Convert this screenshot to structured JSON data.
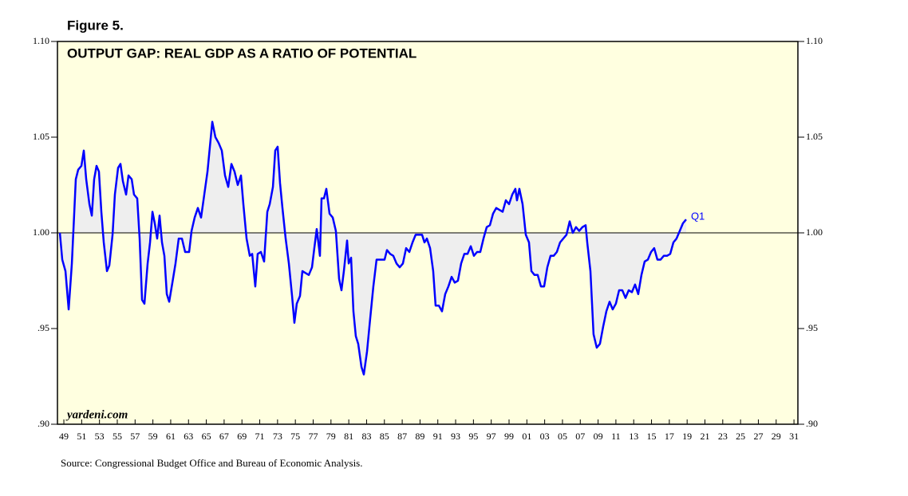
{
  "chart_data": {
    "type": "line",
    "figure_label": "Figure 5.",
    "title": "OUTPUT GAP: REAL GDP AS A RATIO OF POTENTIAL",
    "watermark": "yardeni.com",
    "annotation": "Q1",
    "source": "Source: Congressional Budget Office and Bureau of Economic Analysis.",
    "color": "#0000ff",
    "fill": "#eeeeee",
    "background": "#ffffe0",
    "baseline": 1.0,
    "xlim": [
      1948.28,
      2031.44
    ],
    "ylim": [
      0.9,
      1.1
    ],
    "yticks": [
      {
        "value": 0.9,
        "label": ".90"
      },
      {
        "value": 0.95,
        "label": ".95"
      },
      {
        "value": 1.0,
        "label": "1.00"
      },
      {
        "value": 1.05,
        "label": "1.05"
      },
      {
        "value": 1.1,
        "label": "1.10"
      }
    ],
    "xticks": [
      {
        "value": 1949,
        "label": "49"
      },
      {
        "value": 1951,
        "label": "51"
      },
      {
        "value": 1953,
        "label": "53"
      },
      {
        "value": 1955,
        "label": "55"
      },
      {
        "value": 1957,
        "label": "57"
      },
      {
        "value": 1959,
        "label": "59"
      },
      {
        "value": 1961,
        "label": "61"
      },
      {
        "value": 1963,
        "label": "63"
      },
      {
        "value": 1965,
        "label": "65"
      },
      {
        "value": 1967,
        "label": "67"
      },
      {
        "value": 1969,
        "label": "69"
      },
      {
        "value": 1971,
        "label": "71"
      },
      {
        "value": 1973,
        "label": "73"
      },
      {
        "value": 1975,
        "label": "75"
      },
      {
        "value": 1977,
        "label": "77"
      },
      {
        "value": 1979,
        "label": "79"
      },
      {
        "value": 1981,
        "label": "81"
      },
      {
        "value": 1983,
        "label": "83"
      },
      {
        "value": 1985,
        "label": "85"
      },
      {
        "value": 1987,
        "label": "87"
      },
      {
        "value": 1989,
        "label": "89"
      },
      {
        "value": 1991,
        "label": "91"
      },
      {
        "value": 1993,
        "label": "93"
      },
      {
        "value": 1995,
        "label": "95"
      },
      {
        "value": 1997,
        "label": "97"
      },
      {
        "value": 1999,
        "label": "99"
      },
      {
        "value": 2001,
        "label": "01"
      },
      {
        "value": 2003,
        "label": "03"
      },
      {
        "value": 2005,
        "label": "05"
      },
      {
        "value": 2007,
        "label": "07"
      },
      {
        "value": 2009,
        "label": "09"
      },
      {
        "value": 2011,
        "label": "11"
      },
      {
        "value": 2013,
        "label": "13"
      },
      {
        "value": 2015,
        "label": "15"
      },
      {
        "value": 2017,
        "label": "17"
      },
      {
        "value": 2019,
        "label": "19"
      },
      {
        "value": 2021,
        "label": "21"
      },
      {
        "value": 2023,
        "label": "23"
      },
      {
        "value": 2025,
        "label": "25"
      },
      {
        "value": 2027,
        "label": "27"
      },
      {
        "value": 2029,
        "label": "29"
      },
      {
        "value": 2031,
        "label": "31"
      }
    ],
    "x": [
      1948.55,
      1948.82,
      1949.18,
      1949.54,
      1949.9,
      1950.34,
      1950.61,
      1950.97,
      1951.24,
      1951.51,
      1951.87,
      1952.14,
      1952.4,
      1952.67,
      1952.94,
      1953.21,
      1953.48,
      1953.84,
      1954.11,
      1954.47,
      1954.73,
      1955.09,
      1955.36,
      1955.63,
      1955.99,
      1956.26,
      1956.62,
      1956.88,
      1957.24,
      1957.51,
      1957.78,
      1958.05,
      1958.41,
      1958.68,
      1958.95,
      1959.21,
      1959.48,
      1959.75,
      1960.02,
      1960.29,
      1960.56,
      1960.83,
      1961.19,
      1961.54,
      1961.9,
      1962.26,
      1962.62,
      1963.07,
      1963.34,
      1963.69,
      1964.05,
      1964.41,
      1964.77,
      1965.13,
      1965.4,
      1965.67,
      1966.02,
      1966.38,
      1966.74,
      1967.1,
      1967.46,
      1967.82,
      1968.17,
      1968.53,
      1968.89,
      1969.16,
      1969.52,
      1969.88,
      1970.15,
      1970.5,
      1970.77,
      1971.13,
      1971.49,
      1971.85,
      1972.12,
      1972.48,
      1972.74,
      1973.01,
      1973.28,
      1973.55,
      1973.91,
      1974.27,
      1974.63,
      1974.89,
      1975.16,
      1975.52,
      1975.79,
      1976.15,
      1976.51,
      1976.87,
      1977.13,
      1977.4,
      1977.76,
      1977.94,
      1978.21,
      1978.48,
      1978.84,
      1979.2,
      1979.55,
      1979.91,
      1980.18,
      1980.45,
      1980.81,
      1980.99,
      1981.26,
      1981.52,
      1981.79,
      1982.06,
      1982.42,
      1982.69,
      1983.05,
      1983.4,
      1983.76,
      1984.12,
      1984.66,
      1985.02,
      1985.29,
      1985.65,
      1986.0,
      1986.36,
      1986.72,
      1987.08,
      1987.44,
      1987.8,
      1988.16,
      1988.51,
      1988.87,
      1989.23,
      1989.5,
      1989.77,
      1990.13,
      1990.48,
      1990.75,
      1991.11,
      1991.47,
      1991.83,
      1992.19,
      1992.55,
      1992.9,
      1993.26,
      1993.62,
      1993.98,
      1994.34,
      1994.7,
      1995.05,
      1995.41,
      1995.77,
      1996.13,
      1996.49,
      1996.85,
      1997.2,
      1997.56,
      1997.92,
      1998.28,
      1998.64,
      1999.0,
      1999.36,
      1999.71,
      1999.89,
      2000.16,
      2000.52,
      2000.88,
      2001.24,
      2001.51,
      2001.86,
      2002.22,
      2002.58,
      2002.94,
      2003.3,
      2003.66,
      2004.01,
      2004.37,
      2004.73,
      2005.09,
      2005.45,
      2005.81,
      2006.16,
      2006.52,
      2006.88,
      2007.24,
      2007.6,
      2007.78,
      2008.14,
      2008.49,
      2008.85,
      2009.21,
      2009.57,
      2009.93,
      2010.29,
      2010.64,
      2011.0,
      2011.36,
      2011.72,
      2012.08,
      2012.44,
      2012.8,
      2013.15,
      2013.51,
      2013.87,
      2014.23,
      2014.59,
      2014.95,
      2015.3,
      2015.66,
      2016.02,
      2016.38,
      2016.74,
      2017.1,
      2017.46,
      2017.81,
      2018.17,
      2018.53,
      2018.89
    ],
    "values": [
      1.0,
      0.986,
      0.98,
      0.96,
      0.984,
      1.028,
      1.033,
      1.035,
      1.043,
      1.028,
      1.015,
      1.009,
      1.028,
      1.035,
      1.032,
      1.011,
      0.995,
      0.98,
      0.983,
      0.999,
      1.02,
      1.034,
      1.036,
      1.027,
      1.02,
      1.03,
      1.028,
      1.02,
      1.018,
      0.997,
      0.965,
      0.963,
      0.984,
      0.995,
      1.011,
      1.005,
      0.997,
      1.009,
      0.995,
      0.988,
      0.968,
      0.964,
      0.974,
      0.984,
      0.997,
      0.997,
      0.99,
      0.99,
      1.001,
      1.008,
      1.013,
      1.008,
      1.02,
      1.032,
      1.045,
      1.058,
      1.05,
      1.047,
      1.043,
      1.03,
      1.024,
      1.036,
      1.032,
      1.025,
      1.03,
      1.015,
      0.997,
      0.988,
      0.989,
      0.972,
      0.989,
      0.99,
      0.985,
      1.011,
      1.015,
      1.024,
      1.043,
      1.045,
      1.026,
      1.013,
      0.997,
      0.984,
      0.967,
      0.953,
      0.963,
      0.967,
      0.98,
      0.979,
      0.978,
      0.982,
      0.992,
      1.002,
      0.988,
      1.018,
      1.018,
      1.023,
      1.01,
      1.008,
      1.001,
      0.976,
      0.97,
      0.98,
      0.996,
      0.984,
      0.987,
      0.959,
      0.946,
      0.942,
      0.93,
      0.926,
      0.938,
      0.955,
      0.972,
      0.986,
      0.986,
      0.986,
      0.991,
      0.989,
      0.988,
      0.984,
      0.982,
      0.984,
      0.992,
      0.99,
      0.995,
      0.999,
      0.999,
      0.999,
      0.995,
      0.997,
      0.992,
      0.98,
      0.962,
      0.962,
      0.959,
      0.968,
      0.972,
      0.977,
      0.974,
      0.975,
      0.984,
      0.989,
      0.989,
      0.993,
      0.988,
      0.99,
      0.99,
      0.997,
      1.003,
      1.004,
      1.01,
      1.013,
      1.012,
      1.011,
      1.017,
      1.015,
      1.02,
      1.023,
      1.017,
      1.023,
      1.015,
      0.999,
      0.995,
      0.98,
      0.978,
      0.978,
      0.972,
      0.972,
      0.982,
      0.988,
      0.988,
      0.99,
      0.995,
      0.997,
      0.999,
      1.006,
      1.0,
      1.003,
      1.001,
      1.003,
      1.004,
      0.995,
      0.98,
      0.947,
      0.94,
      0.942,
      0.951,
      0.959,
      0.964,
      0.96,
      0.963,
      0.97,
      0.97,
      0.966,
      0.97,
      0.969,
      0.973,
      0.968,
      0.978,
      0.985,
      0.986,
      0.99,
      0.992,
      0.986,
      0.986,
      0.988,
      0.988,
      0.989,
      0.995,
      0.997,
      1.001,
      1.005,
      1.007
    ]
  }
}
